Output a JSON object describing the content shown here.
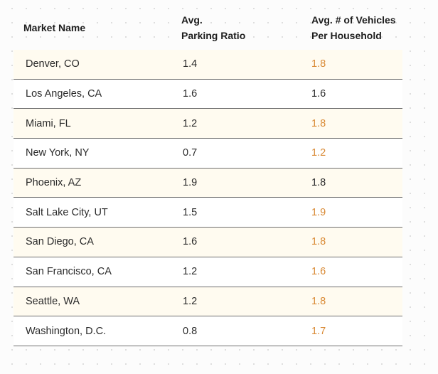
{
  "table": {
    "headers": {
      "market_name": "Market Name",
      "parking_ratio_line1": "Avg.",
      "parking_ratio_line2": "Parking Ratio",
      "vehicles_line1": "Avg. # of Vehicles",
      "vehicles_line2": "Per Household"
    },
    "colors": {
      "shaded_row": "#fffbf0",
      "highlight_value": "#d98a35",
      "normal_value": "#2a2a2a"
    },
    "rows": [
      {
        "market": "Denver, CO",
        "parking_ratio": "1.4",
        "vehicles": "1.8",
        "highlight": true
      },
      {
        "market": "Los Angeles, CA",
        "parking_ratio": "1.6",
        "vehicles": "1.6",
        "highlight": false
      },
      {
        "market": "Miami, FL",
        "parking_ratio": "1.2",
        "vehicles": "1.8",
        "highlight": true
      },
      {
        "market": "New York, NY",
        "parking_ratio": "0.7",
        "vehicles": "1.2",
        "highlight": true
      },
      {
        "market": "Phoenix, AZ",
        "parking_ratio": "1.9",
        "vehicles": "1.8",
        "highlight": false
      },
      {
        "market": "Salt Lake City, UT",
        "parking_ratio": "1.5",
        "vehicles": "1.9",
        "highlight": true
      },
      {
        "market": "San Diego, CA",
        "parking_ratio": "1.6",
        "vehicles": "1.8",
        "highlight": true
      },
      {
        "market": "San Francisco, CA",
        "parking_ratio": "1.2",
        "vehicles": "1.6",
        "highlight": true
      },
      {
        "market": "Seattle, WA",
        "parking_ratio": "1.2",
        "vehicles": "1.8",
        "highlight": true
      },
      {
        "market": "Washington, D.C.",
        "parking_ratio": "0.8",
        "vehicles": "1.7",
        "highlight": true
      }
    ]
  }
}
